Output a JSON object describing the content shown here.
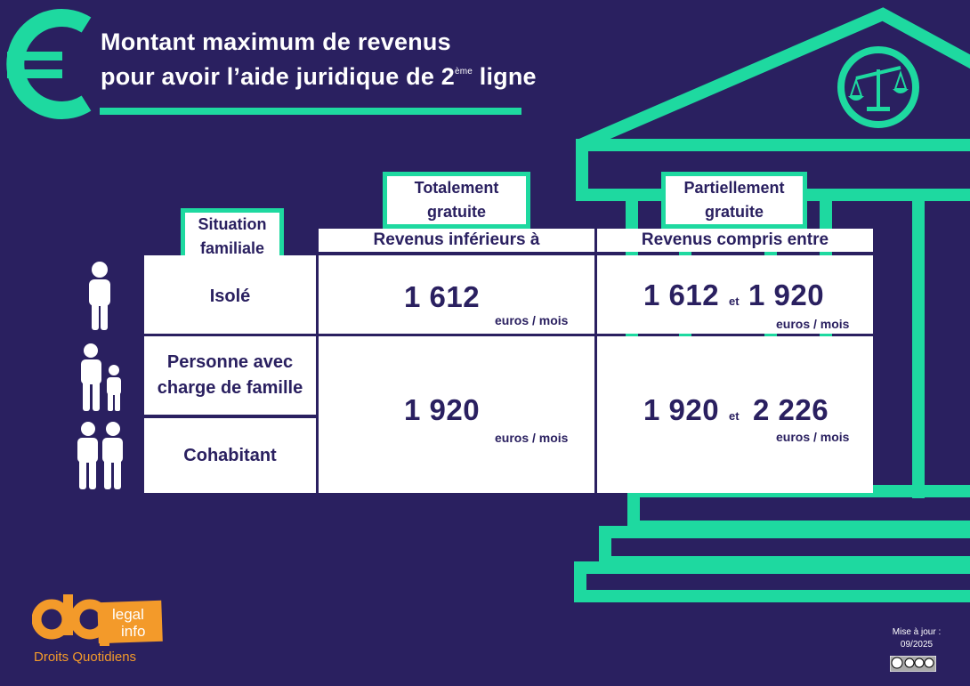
{
  "title": {
    "line1": "Montant maximum de revenus",
    "line2_prefix": "pour avoir l’aide juridique de 2",
    "line2_sup": "ème",
    "line2_suffix": " ligne"
  },
  "table": {
    "col_situation": {
      "line1": "Situation",
      "line2": "familiale"
    },
    "col_free": {
      "line1": "Totalement",
      "line2": "gratuite",
      "sub": "Revenus inférieurs à"
    },
    "col_partial": {
      "line1": "Partiellement",
      "line2": "gratuite",
      "sub": "Revenus compris entre"
    },
    "rows": [
      {
        "situation": "Isolé",
        "free_value": "1 612",
        "free_unit": "euros / mois",
        "partial_low": "1 612",
        "partial_et": "et",
        "partial_high": "1 920",
        "partial_unit": "euros / mois"
      },
      {
        "situation_line1": "Personne avec",
        "situation_line2": "charge de famille",
        "situation2": "Cohabitant",
        "free_value": "1 920",
        "free_unit": "euros / mois",
        "partial_low": "1 920",
        "partial_et": "et",
        "partial_high": "2 226",
        "partial_unit": "euros / mois"
      }
    ]
  },
  "logo": {
    "word1": "legal",
    "word2": "info",
    "tagline": "Droits Quotidiens"
  },
  "footer": {
    "update_label": "Mise à jour :",
    "update_date": "09/2025"
  },
  "icons": [
    "euro-icon",
    "courthouse-icon",
    "scales-icon",
    "person-icon",
    "parent-child-icon",
    "couple-icon",
    "cc-license-icon"
  ],
  "colors": {
    "background": "#2a2060",
    "accent": "#1ed9a0",
    "logo_orange": "#f39a2a",
    "text_dark": "#2a2060"
  }
}
